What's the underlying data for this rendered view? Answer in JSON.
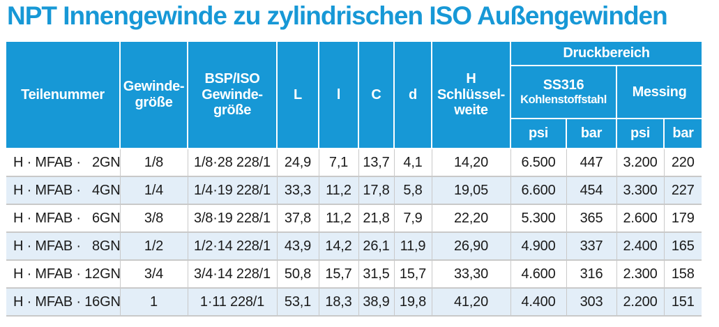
{
  "title": "NPT Innengewinde zu zylindrischen ISO Außengewinden",
  "colors": {
    "accent_blue": "#1798d6",
    "row_stripe": "#e3eef8",
    "header_text": "#ffffff",
    "body_text": "#1a1a1a",
    "grid_line": "#c9c9c9"
  },
  "table": {
    "headers": {
      "teilenummer": "Teilenummer",
      "gewindegroesse": "Gewinde-\ngröße",
      "bsp_iso_gewindegroesse": "BSP/ISO\nGewinde-\ngröße",
      "L": "L",
      "l": "l",
      "C": "C",
      "d": "d",
      "h_schluesselweite": "H\nSchlüssel-\nweite",
      "druckbereich": "Druckbereich",
      "ss316_name": "SS316",
      "ss316_sub": "Kohlenstoffstahl",
      "messing": "Messing",
      "units": [
        "psi",
        "bar",
        "psi",
        "bar"
      ]
    },
    "rows": [
      [
        "H · MFAB ·   2GN",
        "1/8",
        "1/8·28 228/1",
        "24,9",
        "7,1",
        "13,7",
        "4,1",
        "14,20",
        "6.500",
        "447",
        "3.200",
        "220"
      ],
      [
        "H · MFAB ·   4GN",
        "1/4",
        "1/4·19 228/1",
        "33,3",
        "11,2",
        "17,8",
        "5,8",
        "19,05",
        "6.600",
        "454",
        "3.300",
        "227"
      ],
      [
        "H · MFAB ·   6GN",
        "3/8",
        "3/8·19 228/1",
        "37,8",
        "11,2",
        "21,8",
        "7,9",
        "22,20",
        "5.300",
        "365",
        "2.600",
        "179"
      ],
      [
        "H · MFAB ·   8GN",
        "1/2",
        "1/2·14 228/1",
        "43,9",
        "14,2",
        "26,1",
        "11,9",
        "26,90",
        "4.900",
        "337",
        "2.400",
        "165"
      ],
      [
        "H · MFAB · 12GN",
        "3/4",
        "3/4·14 228/1",
        "50,8",
        "15,7",
        "31,5",
        "15,7",
        "33,30",
        "4.600",
        "316",
        "2.300",
        "158"
      ],
      [
        "H · MFAB · 16GN",
        "1",
        "1·11 228/1",
        "53,1",
        "18,3",
        "38,9",
        "19,8",
        "41,20",
        "4.400",
        "303",
        "2.200",
        "151"
      ]
    ]
  }
}
